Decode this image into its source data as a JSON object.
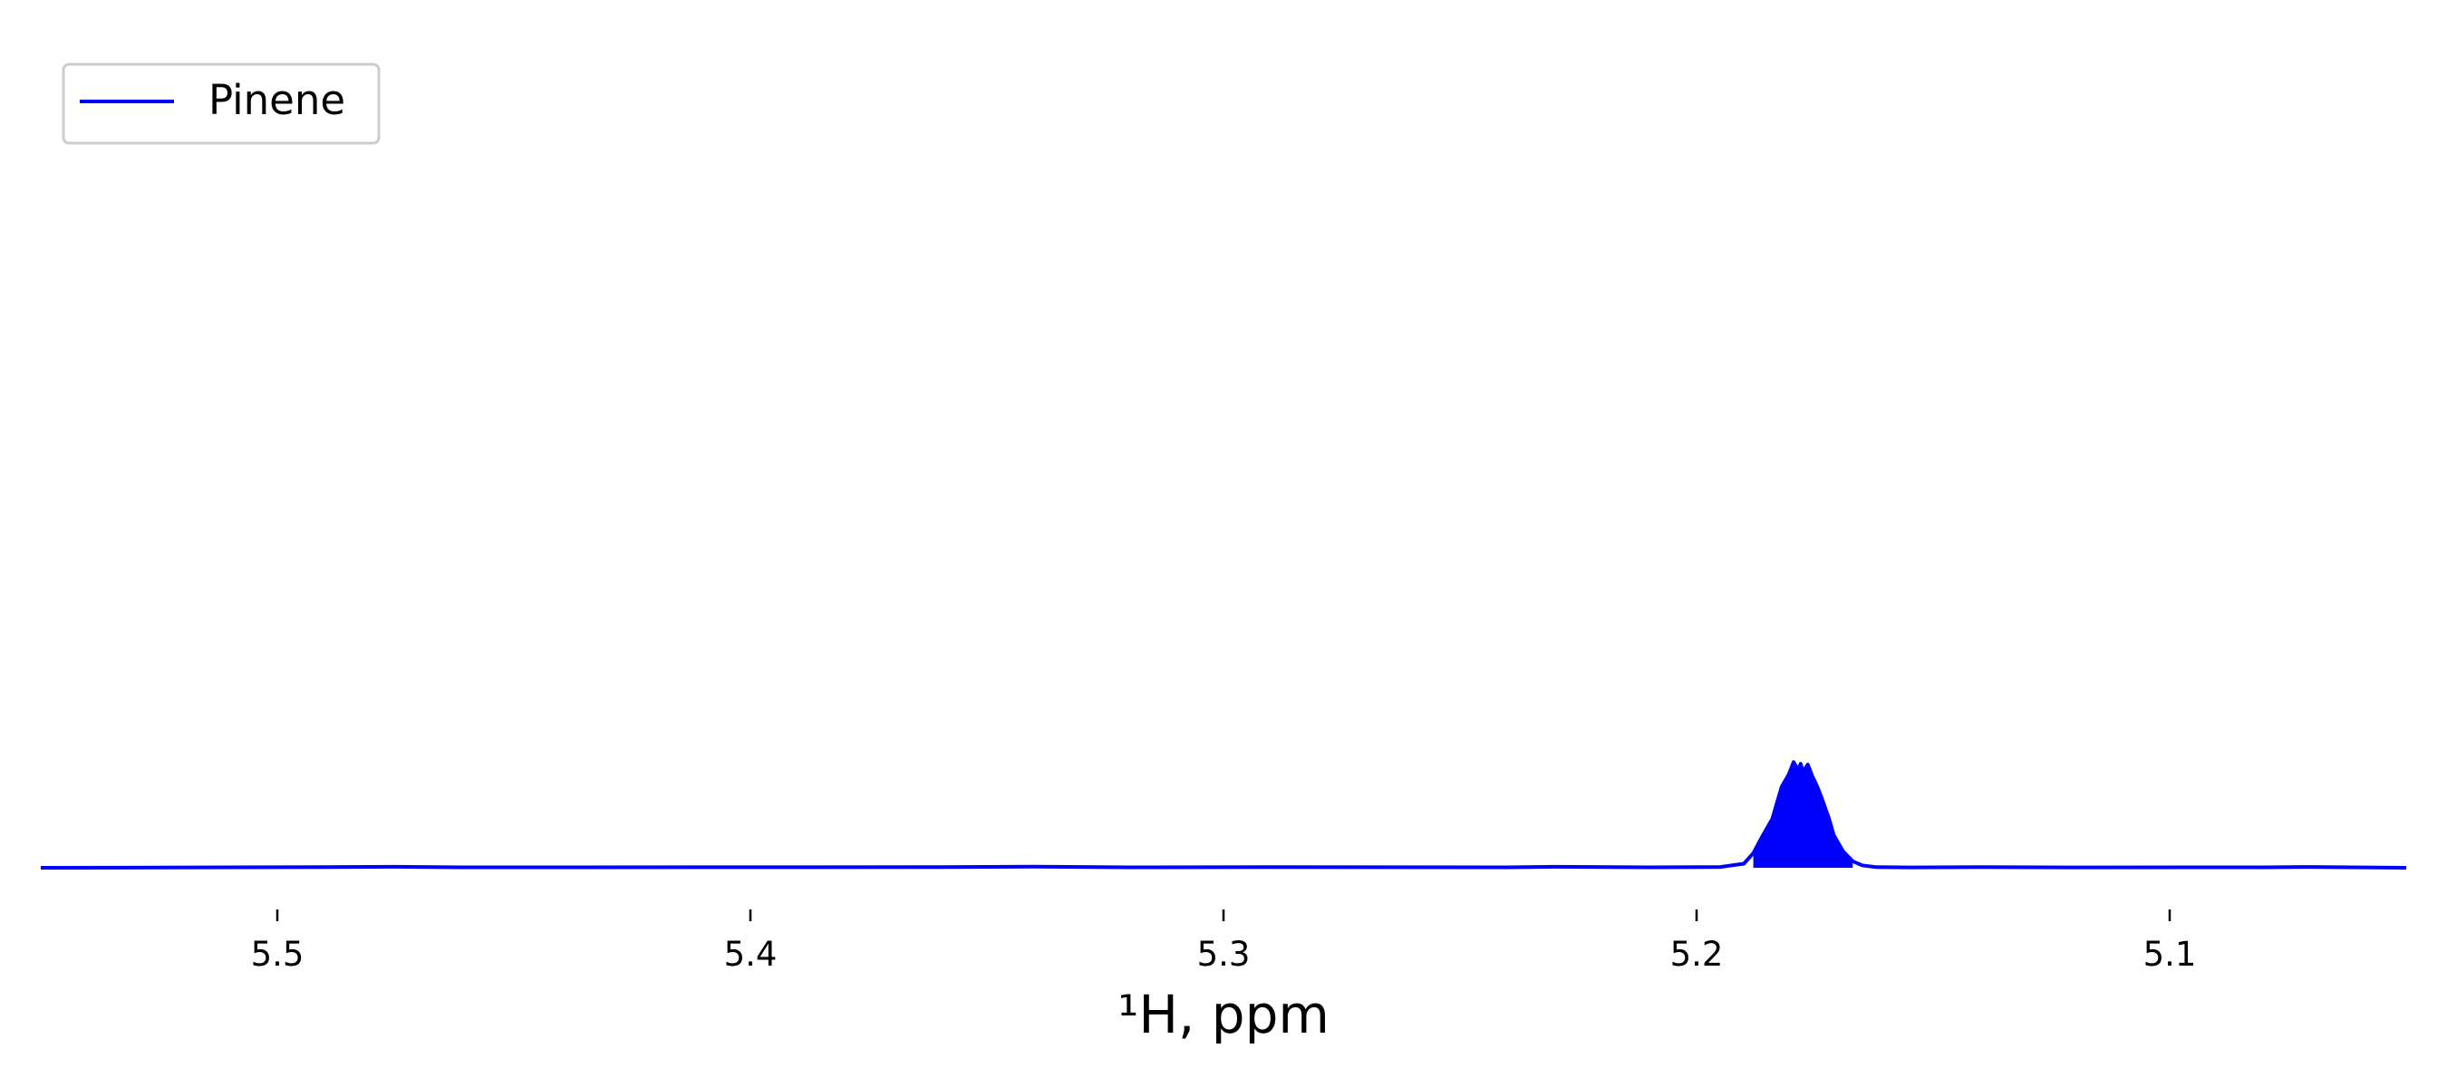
{
  "chart_data": {
    "type": "line",
    "title": "",
    "xlabel": "¹H, ppm",
    "ylabel": "",
    "xlim": [
      5.55,
      5.05
    ],
    "x_axis_reversed": true,
    "ylim": [
      0,
      1
    ],
    "grid": false,
    "legend_position": "top-left",
    "xticks": [
      5.5,
      5.4,
      5.3,
      5.2,
      5.1
    ],
    "xtick_labels": [
      "5.5",
      "5.4",
      "5.3",
      "5.2",
      "5.1"
    ],
    "series": [
      {
        "name": "Pinene",
        "color": "#0000ff",
        "filled_region": [
          5.189,
          5.167
        ],
        "x": [
          5.55,
          5.49,
          5.475,
          5.46,
          5.36,
          5.34,
          5.32,
          5.29,
          5.24,
          5.23,
          5.21,
          5.195,
          5.19,
          5.188,
          5.186,
          5.184,
          5.183,
          5.182,
          5.1805,
          5.1795,
          5.1785,
          5.178,
          5.1775,
          5.1765,
          5.1755,
          5.1745,
          5.1735,
          5.172,
          5.171,
          5.169,
          5.167,
          5.165,
          5.162,
          5.155,
          5.14,
          5.12,
          5.08,
          5.07,
          5.05
        ],
        "y": [
          0.0,
          0.0008,
          0.0012,
          0.0006,
          0.0008,
          0.0014,
          0.0006,
          0.0008,
          0.0006,
          0.0012,
          0.0006,
          0.001,
          0.005,
          0.018,
          0.04,
          0.06,
          0.08,
          0.1,
          0.115,
          0.13,
          0.12,
          0.128,
          0.118,
          0.127,
          0.112,
          0.1,
          0.085,
          0.06,
          0.04,
          0.02,
          0.008,
          0.003,
          0.0008,
          0.0004,
          0.0008,
          0.0004,
          0.0006,
          0.001,
          0.0
        ]
      }
    ]
  }
}
